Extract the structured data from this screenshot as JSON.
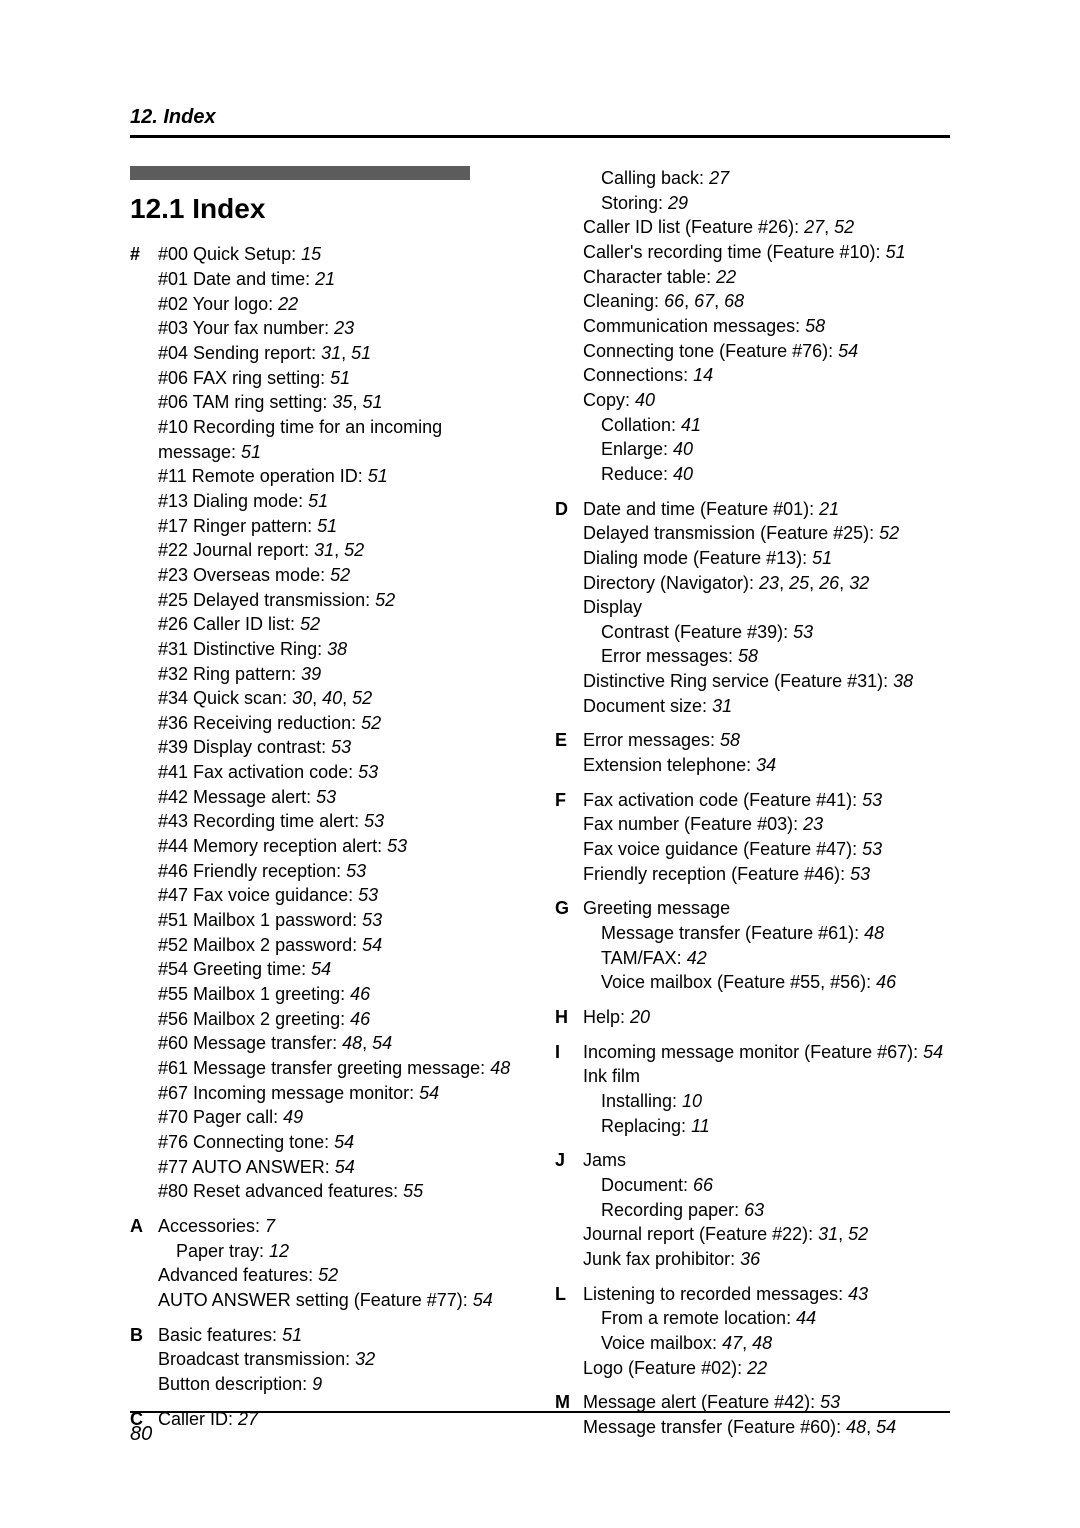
{
  "header": "12. Index",
  "section_heading": "12.1 Index",
  "page_number": "80",
  "left_blocks": [
    {
      "letter": "#",
      "lines": [
        [
          {
            "t": "#00 Quick Setup: "
          },
          {
            "t": "15",
            "i": true
          }
        ],
        [
          {
            "t": "#01 Date and time: "
          },
          {
            "t": "21",
            "i": true
          }
        ],
        [
          {
            "t": "#02 Your logo: "
          },
          {
            "t": "22",
            "i": true
          }
        ],
        [
          {
            "t": "#03 Your fax number: "
          },
          {
            "t": "23",
            "i": true
          }
        ],
        [
          {
            "t": "#04 Sending report: "
          },
          {
            "t": "31",
            "i": true
          },
          {
            "t": ", "
          },
          {
            "t": "51",
            "i": true
          }
        ],
        [
          {
            "t": "#06 FAX ring setting: "
          },
          {
            "t": "51",
            "i": true
          }
        ],
        [
          {
            "t": "#06 TAM ring setting: "
          },
          {
            "t": "35",
            "i": true
          },
          {
            "t": ", "
          },
          {
            "t": "51",
            "i": true
          }
        ],
        [
          {
            "t": "#10 Recording time for an incoming "
          }
        ],
        [
          {
            "t": "message: "
          },
          {
            "t": "51",
            "i": true
          }
        ],
        [
          {
            "t": "#11 Remote operation ID: "
          },
          {
            "t": "51",
            "i": true
          }
        ],
        [
          {
            "t": "#13 Dialing mode: "
          },
          {
            "t": "51",
            "i": true
          }
        ],
        [
          {
            "t": "#17 Ringer pattern: "
          },
          {
            "t": "51",
            "i": true
          }
        ],
        [
          {
            "t": "#22 Journal report: "
          },
          {
            "t": "31",
            "i": true
          },
          {
            "t": ", "
          },
          {
            "t": "52",
            "i": true
          }
        ],
        [
          {
            "t": "#23 Overseas mode: "
          },
          {
            "t": "52",
            "i": true
          }
        ],
        [
          {
            "t": "#25 Delayed transmission: "
          },
          {
            "t": "52",
            "i": true
          }
        ],
        [
          {
            "t": "#26 Caller ID list: "
          },
          {
            "t": "52",
            "i": true
          }
        ],
        [
          {
            "t": "#31 Distinctive Ring: "
          },
          {
            "t": "38",
            "i": true
          }
        ],
        [
          {
            "t": "#32 Ring pattern: "
          },
          {
            "t": "39",
            "i": true
          }
        ],
        [
          {
            "t": "#34 Quick scan: "
          },
          {
            "t": "30",
            "i": true
          },
          {
            "t": ", "
          },
          {
            "t": "40",
            "i": true
          },
          {
            "t": ", "
          },
          {
            "t": "52",
            "i": true
          }
        ],
        [
          {
            "t": "#36 Receiving reduction: "
          },
          {
            "t": "52",
            "i": true
          }
        ],
        [
          {
            "t": "#39 Display contrast: "
          },
          {
            "t": "53",
            "i": true
          }
        ],
        [
          {
            "t": "#41 Fax activation code: "
          },
          {
            "t": "53",
            "i": true
          }
        ],
        [
          {
            "t": "#42 Message alert: "
          },
          {
            "t": "53",
            "i": true
          }
        ],
        [
          {
            "t": "#43 Recording time alert: "
          },
          {
            "t": "53",
            "i": true
          }
        ],
        [
          {
            "t": "#44 Memory reception alert: "
          },
          {
            "t": "53",
            "i": true
          }
        ],
        [
          {
            "t": "#46 Friendly reception: "
          },
          {
            "t": "53",
            "i": true
          }
        ],
        [
          {
            "t": "#47 Fax voice guidance: "
          },
          {
            "t": "53",
            "i": true
          }
        ],
        [
          {
            "t": "#51 Mailbox 1 password: "
          },
          {
            "t": "53",
            "i": true
          }
        ],
        [
          {
            "t": "#52 Mailbox 2 password: "
          },
          {
            "t": "54",
            "i": true
          }
        ],
        [
          {
            "t": "#54 Greeting time: "
          },
          {
            "t": "54",
            "i": true
          }
        ],
        [
          {
            "t": "#55 Mailbox 1 greeting: "
          },
          {
            "t": "46",
            "i": true
          }
        ],
        [
          {
            "t": "#56 Mailbox 2 greeting: "
          },
          {
            "t": "46",
            "i": true
          }
        ],
        [
          {
            "t": "#60 Message transfer: "
          },
          {
            "t": "48",
            "i": true
          },
          {
            "t": ", "
          },
          {
            "t": "54",
            "i": true
          }
        ],
        [
          {
            "t": "#61 Message transfer greeting message: "
          },
          {
            "t": "48",
            "i": true
          }
        ],
        [
          {
            "t": "#67 Incoming message monitor: "
          },
          {
            "t": "54",
            "i": true
          }
        ],
        [
          {
            "t": "#70 Pager call: "
          },
          {
            "t": "49",
            "i": true
          }
        ],
        [
          {
            "t": "#76 Connecting tone: "
          },
          {
            "t": "54",
            "i": true
          }
        ],
        [
          {
            "t": "#77 AUTO ANSWER: "
          },
          {
            "t": "54",
            "i": true
          }
        ],
        [
          {
            "t": "#80 Reset advanced features: "
          },
          {
            "t": "55",
            "i": true
          }
        ]
      ]
    },
    {
      "letter": "A",
      "lines": [
        [
          {
            "t": "Accessories: "
          },
          {
            "t": "7",
            "i": true
          }
        ],
        [
          {
            "t": "Paper tray: ",
            "sub": true
          },
          {
            "t": "12",
            "i": true
          }
        ],
        [
          {
            "t": "Advanced features: "
          },
          {
            "t": "52",
            "i": true
          }
        ],
        [
          {
            "t": "AUTO ANSWER setting (Feature #77): "
          },
          {
            "t": "54",
            "i": true
          }
        ]
      ]
    },
    {
      "letter": "B",
      "lines": [
        [
          {
            "t": "Basic features: "
          },
          {
            "t": "51",
            "i": true
          }
        ],
        [
          {
            "t": "Broadcast transmission: "
          },
          {
            "t": "32",
            "i": true
          }
        ],
        [
          {
            "t": "Button description: "
          },
          {
            "t": "9",
            "i": true
          }
        ]
      ]
    },
    {
      "letter": "C",
      "lines": [
        [
          {
            "t": "Caller ID: "
          },
          {
            "t": "27",
            "i": true
          }
        ]
      ]
    }
  ],
  "right_blocks": [
    {
      "letter": "",
      "lines": [
        [
          {
            "t": "Calling back: ",
            "sub": true
          },
          {
            "t": "27",
            "i": true
          }
        ],
        [
          {
            "t": "Storing: ",
            "sub": true
          },
          {
            "t": "29",
            "i": true
          }
        ],
        [
          {
            "t": "Caller ID list (Feature #26): "
          },
          {
            "t": "27",
            "i": true
          },
          {
            "t": ", "
          },
          {
            "t": "52",
            "i": true
          }
        ],
        [
          {
            "t": "Caller's recording time (Feature #10): "
          },
          {
            "t": "51",
            "i": true
          }
        ],
        [
          {
            "t": "Character table: "
          },
          {
            "t": "22",
            "i": true
          }
        ],
        [
          {
            "t": "Cleaning: "
          },
          {
            "t": "66",
            "i": true
          },
          {
            "t": ", "
          },
          {
            "t": "67",
            "i": true
          },
          {
            "t": ", "
          },
          {
            "t": "68",
            "i": true
          }
        ],
        [
          {
            "t": "Communication messages: "
          },
          {
            "t": "58",
            "i": true
          }
        ],
        [
          {
            "t": "Connecting tone (Feature #76): "
          },
          {
            "t": "54",
            "i": true
          }
        ],
        [
          {
            "t": "Connections: "
          },
          {
            "t": "14",
            "i": true
          }
        ],
        [
          {
            "t": "Copy: "
          },
          {
            "t": "40",
            "i": true
          }
        ],
        [
          {
            "t": "Collation: ",
            "sub": true
          },
          {
            "t": "41",
            "i": true
          }
        ],
        [
          {
            "t": "Enlarge: ",
            "sub": true
          },
          {
            "t": "40",
            "i": true
          }
        ],
        [
          {
            "t": "Reduce: ",
            "sub": true
          },
          {
            "t": "40",
            "i": true
          }
        ]
      ]
    },
    {
      "letter": "D",
      "lines": [
        [
          {
            "t": "Date and time (Feature #01): "
          },
          {
            "t": "21",
            "i": true
          }
        ],
        [
          {
            "t": "Delayed transmission (Feature #25): "
          },
          {
            "t": "52",
            "i": true
          }
        ],
        [
          {
            "t": "Dialing mode (Feature #13): "
          },
          {
            "t": "51",
            "i": true
          }
        ],
        [
          {
            "t": "Directory (Navigator): "
          },
          {
            "t": "23",
            "i": true
          },
          {
            "t": ", "
          },
          {
            "t": "25",
            "i": true
          },
          {
            "t": ", "
          },
          {
            "t": "26",
            "i": true
          },
          {
            "t": ", "
          },
          {
            "t": "32",
            "i": true
          }
        ],
        [
          {
            "t": "Display"
          }
        ],
        [
          {
            "t": "Contrast (Feature #39): ",
            "sub": true
          },
          {
            "t": "53",
            "i": true
          }
        ],
        [
          {
            "t": "Error messages: ",
            "sub": true
          },
          {
            "t": "58",
            "i": true
          }
        ],
        [
          {
            "t": "Distinctive Ring service (Feature #31): "
          },
          {
            "t": "38",
            "i": true
          }
        ],
        [
          {
            "t": "Document size: "
          },
          {
            "t": "31",
            "i": true
          }
        ]
      ]
    },
    {
      "letter": "E",
      "lines": [
        [
          {
            "t": "Error messages: "
          },
          {
            "t": "58",
            "i": true
          }
        ],
        [
          {
            "t": "Extension telephone: "
          },
          {
            "t": "34",
            "i": true
          }
        ]
      ]
    },
    {
      "letter": "F",
      "lines": [
        [
          {
            "t": "Fax activation code (Feature #41): "
          },
          {
            "t": "53",
            "i": true
          }
        ],
        [
          {
            "t": "Fax number (Feature #03): "
          },
          {
            "t": "23",
            "i": true
          }
        ],
        [
          {
            "t": "Fax voice guidance (Feature #47): "
          },
          {
            "t": "53",
            "i": true
          }
        ],
        [
          {
            "t": "Friendly reception (Feature #46): "
          },
          {
            "t": "53",
            "i": true
          }
        ]
      ]
    },
    {
      "letter": "G",
      "lines": [
        [
          {
            "t": "Greeting message"
          }
        ],
        [
          {
            "t": "Message transfer (Feature #61): ",
            "sub": true
          },
          {
            "t": "48",
            "i": true
          }
        ],
        [
          {
            "t": "TAM/FAX: ",
            "sub": true
          },
          {
            "t": "42",
            "i": true
          }
        ],
        [
          {
            "t": "Voice mailbox (Feature #55, #56): ",
            "sub": true
          },
          {
            "t": "46",
            "i": true
          }
        ]
      ]
    },
    {
      "letter": "H",
      "lines": [
        [
          {
            "t": "Help: "
          },
          {
            "t": "20",
            "i": true
          }
        ]
      ]
    },
    {
      "letter": "I",
      "lines": [
        [
          {
            "t": "Incoming message monitor (Feature #67): "
          },
          {
            "t": "54",
            "i": true
          }
        ],
        [
          {
            "t": "Ink film"
          }
        ],
        [
          {
            "t": "Installing: ",
            "sub": true
          },
          {
            "t": "10",
            "i": true
          }
        ],
        [
          {
            "t": "Replacing: ",
            "sub": true
          },
          {
            "t": "11",
            "i": true
          }
        ]
      ]
    },
    {
      "letter": "J",
      "lines": [
        [
          {
            "t": "Jams"
          }
        ],
        [
          {
            "t": "Document: ",
            "sub": true
          },
          {
            "t": "66",
            "i": true
          }
        ],
        [
          {
            "t": "Recording paper: ",
            "sub": true
          },
          {
            "t": "63",
            "i": true
          }
        ],
        [
          {
            "t": "Journal report (Feature #22): "
          },
          {
            "t": "31",
            "i": true
          },
          {
            "t": ", "
          },
          {
            "t": "52",
            "i": true
          }
        ],
        [
          {
            "t": "Junk fax prohibitor: "
          },
          {
            "t": "36",
            "i": true
          }
        ]
      ]
    },
    {
      "letter": "L",
      "lines": [
        [
          {
            "t": "Listening to recorded messages: "
          },
          {
            "t": "43",
            "i": true
          }
        ],
        [
          {
            "t": "From a remote location: ",
            "sub": true
          },
          {
            "t": "44",
            "i": true
          }
        ],
        [
          {
            "t": "Voice mailbox: ",
            "sub": true
          },
          {
            "t": "47",
            "i": true
          },
          {
            "t": ", "
          },
          {
            "t": "48",
            "i": true
          }
        ],
        [
          {
            "t": "Logo (Feature #02): "
          },
          {
            "t": "22",
            "i": true
          }
        ]
      ]
    },
    {
      "letter": "M",
      "lines": [
        [
          {
            "t": "Message alert (Feature #42): "
          },
          {
            "t": "53",
            "i": true
          }
        ],
        [
          {
            "t": "Message transfer (Feature #60): "
          },
          {
            "t": "48",
            "i": true
          },
          {
            "t": ", "
          },
          {
            "t": "54",
            "i": true
          }
        ]
      ]
    }
  ]
}
